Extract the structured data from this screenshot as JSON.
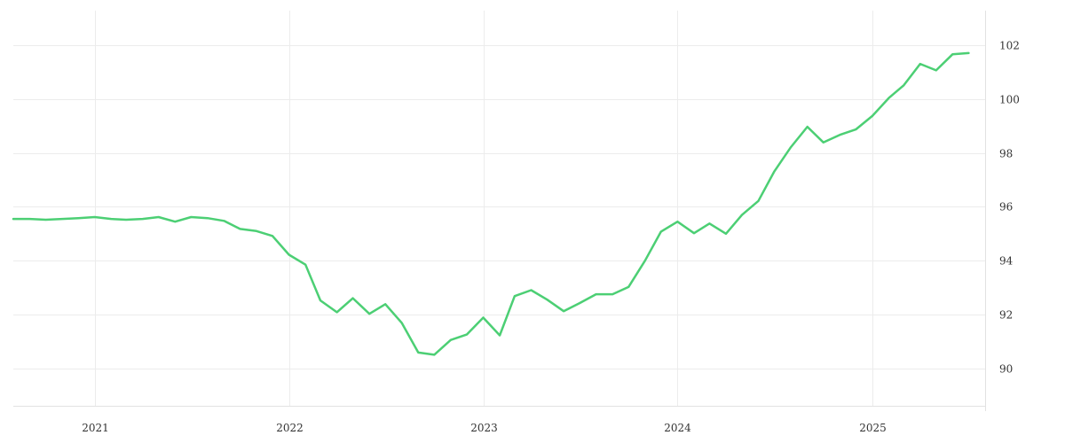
{
  "chart_data": {
    "type": "line",
    "title": "",
    "xlabel": "",
    "ylabel": "",
    "x_tick_labels": [
      "2021",
      "2022",
      "2023",
      "2024",
      "2025"
    ],
    "y_ticks": [
      90,
      92,
      94,
      96,
      98,
      100,
      102
    ],
    "y_tick_labels": [
      "90",
      "92",
      "94",
      "96",
      "98",
      "100",
      "102"
    ],
    "xlim": [
      "2020-08-01",
      "2025-08-01"
    ],
    "ylim": [
      88.6,
      103.3
    ],
    "grid": true,
    "y_axis_side": "right",
    "series_color": "#4ccf74",
    "series": [
      {
        "x": [
          "2020-08-01",
          "2020-09-01",
          "2020-10-01",
          "2020-11-01",
          "2020-12-01",
          "2021-01-01",
          "2021-02-01",
          "2021-03-01",
          "2021-04-01",
          "2021-05-01",
          "2021-06-01",
          "2021-07-01",
          "2021-08-01",
          "2021-09-01",
          "2021-10-01",
          "2021-11-01",
          "2021-12-01",
          "2022-01-01",
          "2022-02-01",
          "2022-03-01",
          "2022-04-01",
          "2022-05-01",
          "2022-06-01",
          "2022-07-01",
          "2022-08-01",
          "2022-09-01",
          "2022-10-01",
          "2022-11-01",
          "2022-12-01",
          "2023-01-01",
          "2023-02-01",
          "2023-03-01",
          "2023-04-01",
          "2023-05-01",
          "2023-06-01",
          "2023-07-01",
          "2023-08-01",
          "2023-09-01",
          "2023-10-01",
          "2023-11-01",
          "2023-12-01",
          "2024-01-01",
          "2024-02-01",
          "2024-03-01",
          "2024-04-01",
          "2024-05-01",
          "2024-06-01",
          "2024-07-01",
          "2024-08-01",
          "2024-09-01",
          "2024-10-01",
          "2024-11-01",
          "2024-12-01",
          "2025-01-01",
          "2025-02-01",
          "2025-03-01",
          "2025-04-01",
          "2025-05-01",
          "2025-06-01",
          "2025-07-01"
        ],
        "y": [
          95.55,
          95.55,
          95.52,
          95.55,
          95.58,
          95.62,
          95.55,
          95.52,
          95.55,
          95.62,
          95.45,
          95.62,
          95.58,
          95.48,
          95.18,
          95.1,
          94.92,
          94.22,
          93.85,
          92.52,
          92.08,
          92.6,
          92.02,
          92.38,
          91.68,
          90.58,
          90.5,
          91.05,
          91.25,
          91.88,
          91.22,
          92.68,
          92.9,
          92.55,
          92.12,
          92.42,
          92.75,
          92.75,
          93.02,
          94.0,
          95.08,
          95.45,
          95.02,
          95.38,
          95.0,
          95.7,
          96.22,
          97.32,
          98.22,
          98.98,
          98.4,
          98.68,
          98.88,
          99.38,
          100.05,
          100.52,
          101.32,
          101.08,
          101.68,
          101.72
        ]
      }
    ]
  }
}
